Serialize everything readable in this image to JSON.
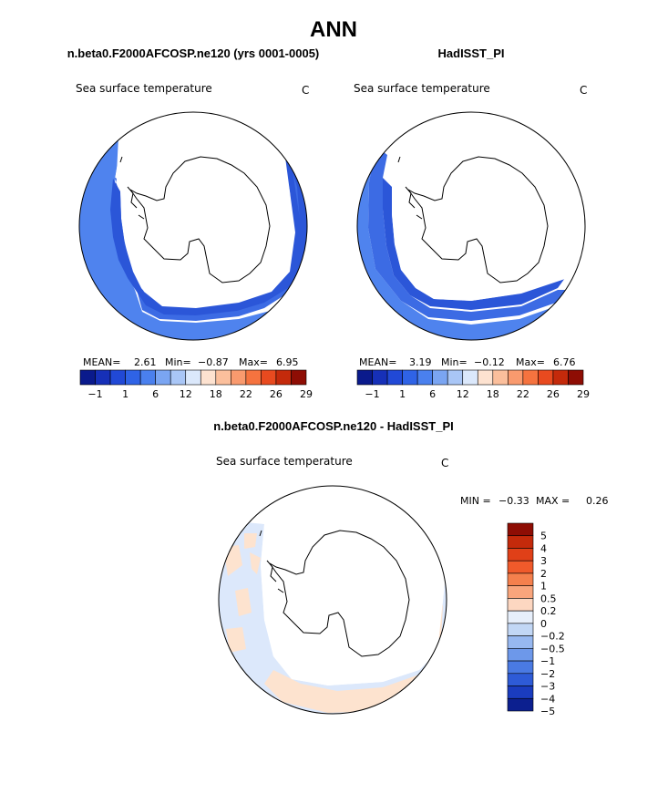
{
  "page": {
    "title": "ANN",
    "left_panel_title": "n.beta0.F2000AFCOSP.ne120 (yrs 0001-0005)",
    "right_panel_title": "HadISST_PI",
    "diff_panel_title": "n.beta0.F2000AFCOSP.ne120 - HadISST_PI"
  },
  "chart_data": [
    {
      "type": "heatmap",
      "projection": "south-polar-stereographic",
      "title": "n.beta0.F2000AFCOSP.ne120 (yrs 0001-0005)",
      "variable": "Sea surface temperature",
      "units": "C",
      "stats": {
        "mean_label": "MEAN=",
        "mean": "2.61",
        "min_label": "Min=",
        "min": "−0.87",
        "max_label": "Max=",
        "max": "6.95"
      },
      "colorbar": {
        "orientation": "horizontal",
        "tick_labels": [
          "−1",
          "1",
          "6",
          "12",
          "18",
          "22",
          "26",
          "29"
        ]
      }
    },
    {
      "type": "heatmap",
      "projection": "south-polar-stereographic",
      "title": "HadISST_PI",
      "variable": "Sea surface temperature",
      "units": "C",
      "stats": {
        "mean_label": "MEAN=",
        "mean": "3.19",
        "min_label": "Min=",
        "min": "−0.12",
        "max_label": "Max=",
        "max": "6.76"
      },
      "colorbar": {
        "orientation": "horizontal",
        "tick_labels": [
          "−1",
          "1",
          "6",
          "12",
          "18",
          "22",
          "26",
          "29"
        ]
      }
    },
    {
      "type": "heatmap",
      "projection": "south-polar-stereographic",
      "title": "n.beta0.F2000AFCOSP.ne120 - HadISST_PI",
      "variable": "Sea surface temperature",
      "units": "C",
      "stats": {
        "min_label": "MIN =",
        "min": "−0.33",
        "max_label": "MAX =",
        "max": "0.26"
      },
      "colorbar": {
        "orientation": "vertical",
        "tick_labels": [
          "5",
          "4",
          "3",
          "2",
          "1",
          "0.5",
          "0.2",
          "0",
          "−0.2",
          "−0.5",
          "−1",
          "−2",
          "−3",
          "−4",
          "−5"
        ]
      }
    }
  ],
  "palettes": {
    "sst": [
      "#0a1a8c",
      "#1630b8",
      "#2149d6",
      "#2f63e6",
      "#4a80ee",
      "#7aa5f2",
      "#a9c6f6",
      "#dbe8fb",
      "#fde2d0",
      "#fbbf9c",
      "#f99a6e",
      "#f5733f",
      "#e84a1f",
      "#c42a0b",
      "#8e0d04"
    ],
    "diff": [
      "#8e0d04",
      "#c42a0b",
      "#e04018",
      "#f05a2b",
      "#f5804d",
      "#f9a57c",
      "#fdd7c1",
      "#e7effb",
      "#c2d7f5",
      "#97b8f0",
      "#6d98ea",
      "#4a7ae3",
      "#2e5bd7",
      "#1a3cbf",
      "#0c1f8f"
    ],
    "ocean_dark": "#2b56d8",
    "ocean_mid": "#3e6ee6",
    "ocean_light": "#4f82ee",
    "diff_light_blue": "#dce8fb",
    "diff_light_orange": "#fde3cf"
  }
}
